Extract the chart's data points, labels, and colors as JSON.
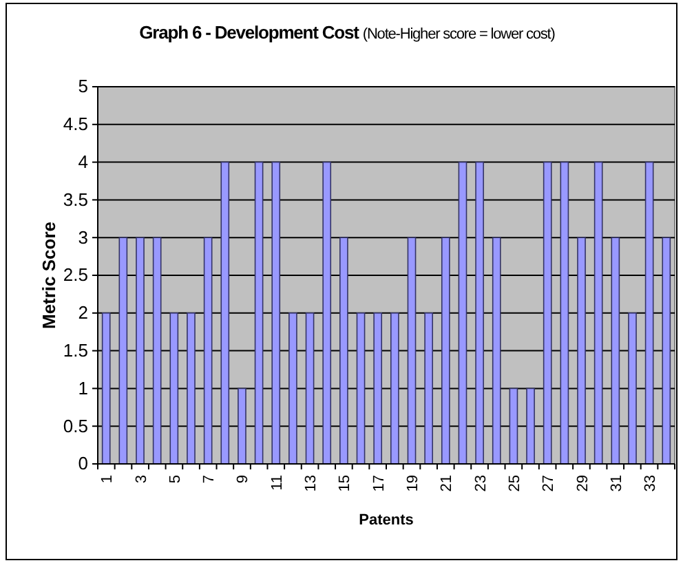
{
  "chart_data": {
    "type": "bar",
    "title": "Graph 6 - Development Cost",
    "subtitle": "(Note-Higher score = lower cost)",
    "xlabel": "Patents",
    "ylabel": "Metric Score",
    "categories": [
      "1",
      null,
      "3",
      null,
      "5",
      null,
      "7",
      null,
      "9",
      null,
      "11",
      null,
      "13",
      null,
      "15",
      null,
      "17",
      null,
      "19",
      null,
      "21",
      null,
      "23",
      null,
      "25",
      null,
      "27",
      null,
      "29",
      null,
      "31",
      null,
      "33",
      null
    ],
    "values": [
      2,
      3,
      3,
      3,
      2,
      2,
      3,
      4,
      1,
      4,
      4,
      2,
      2,
      4,
      3,
      2,
      2,
      2,
      3,
      2,
      3,
      4,
      4,
      3,
      1,
      1,
      4,
      4,
      3,
      4,
      3,
      2,
      4,
      3
    ],
    "color": "#9999ff",
    "ylim": [
      0,
      5
    ],
    "yticks": [
      0,
      0.5,
      1,
      1.5,
      2,
      2.5,
      3,
      3.5,
      4,
      4.5,
      5
    ],
    "grid": "y"
  }
}
